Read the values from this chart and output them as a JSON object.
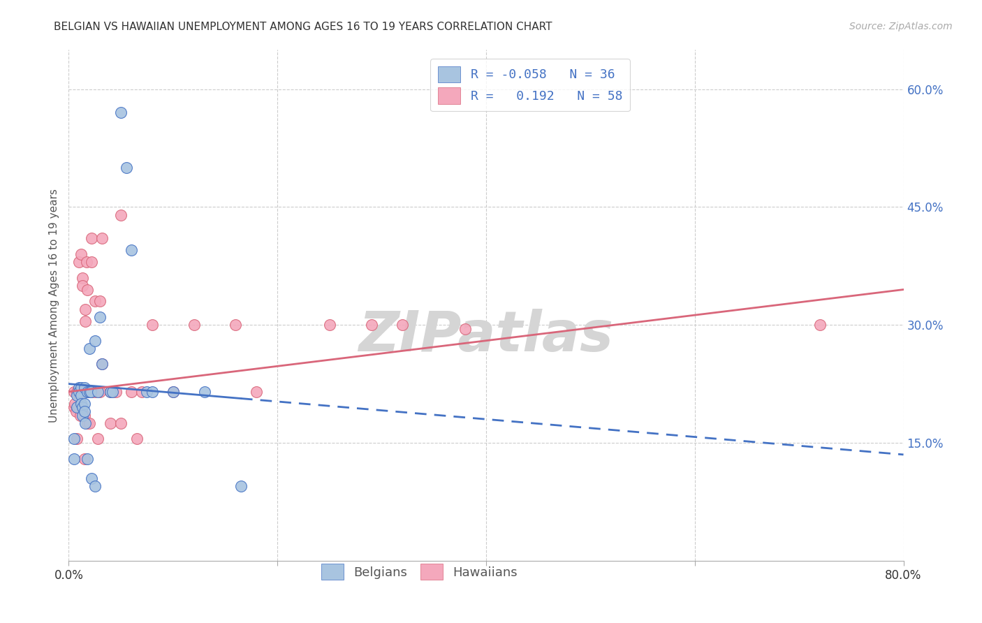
{
  "title": "BELGIAN VS HAWAIIAN UNEMPLOYMENT AMONG AGES 16 TO 19 YEARS CORRELATION CHART",
  "source": "Source: ZipAtlas.com",
  "ylabel": "Unemployment Among Ages 16 to 19 years",
  "xlim": [
    0.0,
    0.8
  ],
  "ylim": [
    0.0,
    0.65
  ],
  "yticks": [
    0.15,
    0.3,
    0.45,
    0.6
  ],
  "xticks": [
    0.0,
    0.2,
    0.4,
    0.6,
    0.8
  ],
  "xtick_labels": [
    "0.0%",
    "",
    "",
    "",
    "80.0%"
  ],
  "ytick_labels_right": [
    "15.0%",
    "30.0%",
    "45.0%",
    "60.0%"
  ],
  "belgian_R": "-0.058",
  "belgian_N": "36",
  "hawaiian_R": "0.192",
  "hawaiian_N": "58",
  "belgian_color": "#a8c4e0",
  "hawaiian_color": "#f4a8bc",
  "belgian_line_color": "#4472c4",
  "hawaiian_line_color": "#d9667a",
  "background_color": "#ffffff",
  "grid_color": "#cccccc",
  "watermark_color": "#d5d5d5",
  "belgians_x": [
    0.005,
    0.005,
    0.008,
    0.008,
    0.01,
    0.01,
    0.012,
    0.012,
    0.012,
    0.013,
    0.013,
    0.015,
    0.015,
    0.015,
    0.016,
    0.018,
    0.018,
    0.02,
    0.02,
    0.021,
    0.022,
    0.025,
    0.025,
    0.028,
    0.03,
    0.032,
    0.04,
    0.042,
    0.05,
    0.055,
    0.06,
    0.075,
    0.08,
    0.1,
    0.13,
    0.165
  ],
  "belgians_y": [
    0.155,
    0.13,
    0.21,
    0.195,
    0.22,
    0.215,
    0.22,
    0.21,
    0.2,
    0.195,
    0.185,
    0.22,
    0.2,
    0.19,
    0.175,
    0.215,
    0.13,
    0.27,
    0.215,
    0.215,
    0.105,
    0.28,
    0.095,
    0.215,
    0.31,
    0.25,
    0.215,
    0.215,
    0.57,
    0.5,
    0.395,
    0.215,
    0.215,
    0.215,
    0.215,
    0.095
  ],
  "hawaiians_x": [
    0.005,
    0.005,
    0.006,
    0.007,
    0.008,
    0.008,
    0.009,
    0.01,
    0.01,
    0.011,
    0.011,
    0.012,
    0.012,
    0.013,
    0.013,
    0.013,
    0.015,
    0.015,
    0.015,
    0.016,
    0.016,
    0.016,
    0.017,
    0.018,
    0.018,
    0.02,
    0.02,
    0.02,
    0.021,
    0.022,
    0.022,
    0.022,
    0.025,
    0.025,
    0.028,
    0.03,
    0.03,
    0.032,
    0.032,
    0.04,
    0.04,
    0.042,
    0.045,
    0.05,
    0.05,
    0.06,
    0.065,
    0.07,
    0.08,
    0.1,
    0.12,
    0.16,
    0.18,
    0.25,
    0.29,
    0.32,
    0.38,
    0.72
  ],
  "hawaiians_y": [
    0.215,
    0.195,
    0.2,
    0.19,
    0.215,
    0.155,
    0.215,
    0.38,
    0.195,
    0.215,
    0.185,
    0.39,
    0.215,
    0.215,
    0.36,
    0.35,
    0.215,
    0.185,
    0.13,
    0.32,
    0.305,
    0.215,
    0.38,
    0.345,
    0.175,
    0.215,
    0.215,
    0.175,
    0.215,
    0.41,
    0.38,
    0.215,
    0.33,
    0.215,
    0.155,
    0.33,
    0.215,
    0.41,
    0.25,
    0.215,
    0.175,
    0.215,
    0.215,
    0.44,
    0.175,
    0.215,
    0.155,
    0.215,
    0.3,
    0.215,
    0.3,
    0.3,
    0.215,
    0.3,
    0.3,
    0.3,
    0.295,
    0.3
  ],
  "belgian_line_start_x": 0.0,
  "belgian_line_end_solid_x": 0.165,
  "belgian_line_end_dash_x": 0.8,
  "belgian_line_start_y": 0.225,
  "belgian_line_end_y": 0.135,
  "hawaiian_line_start_x": 0.0,
  "hawaiian_line_end_x": 0.8,
  "hawaiian_line_start_y": 0.215,
  "hawaiian_line_end_y": 0.345
}
